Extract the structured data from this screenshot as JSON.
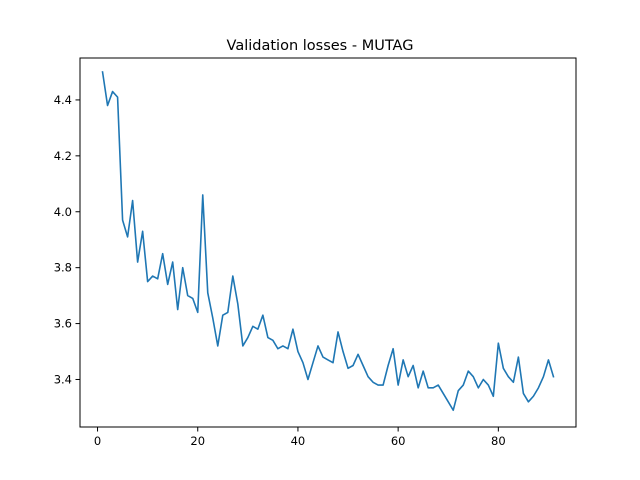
{
  "chart_data": {
    "type": "line",
    "title": "Validation losses - MUTAG",
    "xlabel": "",
    "ylabel": "",
    "xlim": [
      -3.5,
      95.5
    ],
    "ylim": [
      3.23,
      4.55
    ],
    "xticks": [
      0,
      20,
      40,
      60,
      80
    ],
    "xtick_labels": [
      "0",
      "20",
      "40",
      "60",
      "80"
    ],
    "yticks": [
      3.4,
      3.6,
      3.8,
      4.0,
      4.2,
      4.4
    ],
    "ytick_labels": [
      "3.4",
      "3.6",
      "3.8",
      "4.0",
      "4.2",
      "4.4"
    ],
    "grid": false,
    "legend": null,
    "series": [
      {
        "color": "#1f77b4",
        "x": [
          1,
          2,
          3,
          4,
          5,
          6,
          7,
          8,
          9,
          10,
          11,
          12,
          13,
          14,
          15,
          16,
          17,
          18,
          19,
          20,
          21,
          22,
          23,
          24,
          25,
          26,
          27,
          28,
          29,
          30,
          31,
          32,
          33,
          34,
          35,
          36,
          37,
          38,
          39,
          40,
          41,
          42,
          43,
          44,
          45,
          46,
          47,
          48,
          49,
          50,
          51,
          52,
          53,
          54,
          55,
          56,
          57,
          58,
          59,
          60,
          61,
          62,
          63,
          64,
          65,
          66,
          67,
          68,
          69,
          70,
          71,
          72,
          73,
          74,
          75,
          76,
          77,
          78,
          79,
          80,
          81,
          82,
          83,
          84,
          85,
          86,
          87,
          88,
          89,
          90,
          91
        ],
        "y": [
          4.5,
          4.38,
          4.43,
          4.41,
          3.97,
          3.91,
          4.04,
          3.82,
          3.93,
          3.75,
          3.77,
          3.76,
          3.85,
          3.74,
          3.82,
          3.65,
          3.8,
          3.7,
          3.69,
          3.64,
          4.06,
          3.71,
          3.62,
          3.52,
          3.63,
          3.64,
          3.77,
          3.67,
          3.52,
          3.55,
          3.59,
          3.58,
          3.63,
          3.55,
          3.54,
          3.51,
          3.52,
          3.51,
          3.58,
          3.5,
          3.46,
          3.4,
          3.46,
          3.52,
          3.48,
          3.47,
          3.46,
          3.57,
          3.5,
          3.44,
          3.45,
          3.49,
          3.45,
          3.41,
          3.39,
          3.38,
          3.38,
          3.45,
          3.51,
          3.38,
          3.47,
          3.41,
          3.45,
          3.37,
          3.43,
          3.37,
          3.37,
          3.38,
          3.35,
          3.32,
          3.29,
          3.36,
          3.38,
          3.43,
          3.41,
          3.37,
          3.4,
          3.38,
          3.34,
          3.53,
          3.44,
          3.41,
          3.39,
          3.48,
          3.35,
          3.32,
          3.34,
          3.37,
          3.41,
          3.47,
          3.41
        ]
      }
    ]
  }
}
